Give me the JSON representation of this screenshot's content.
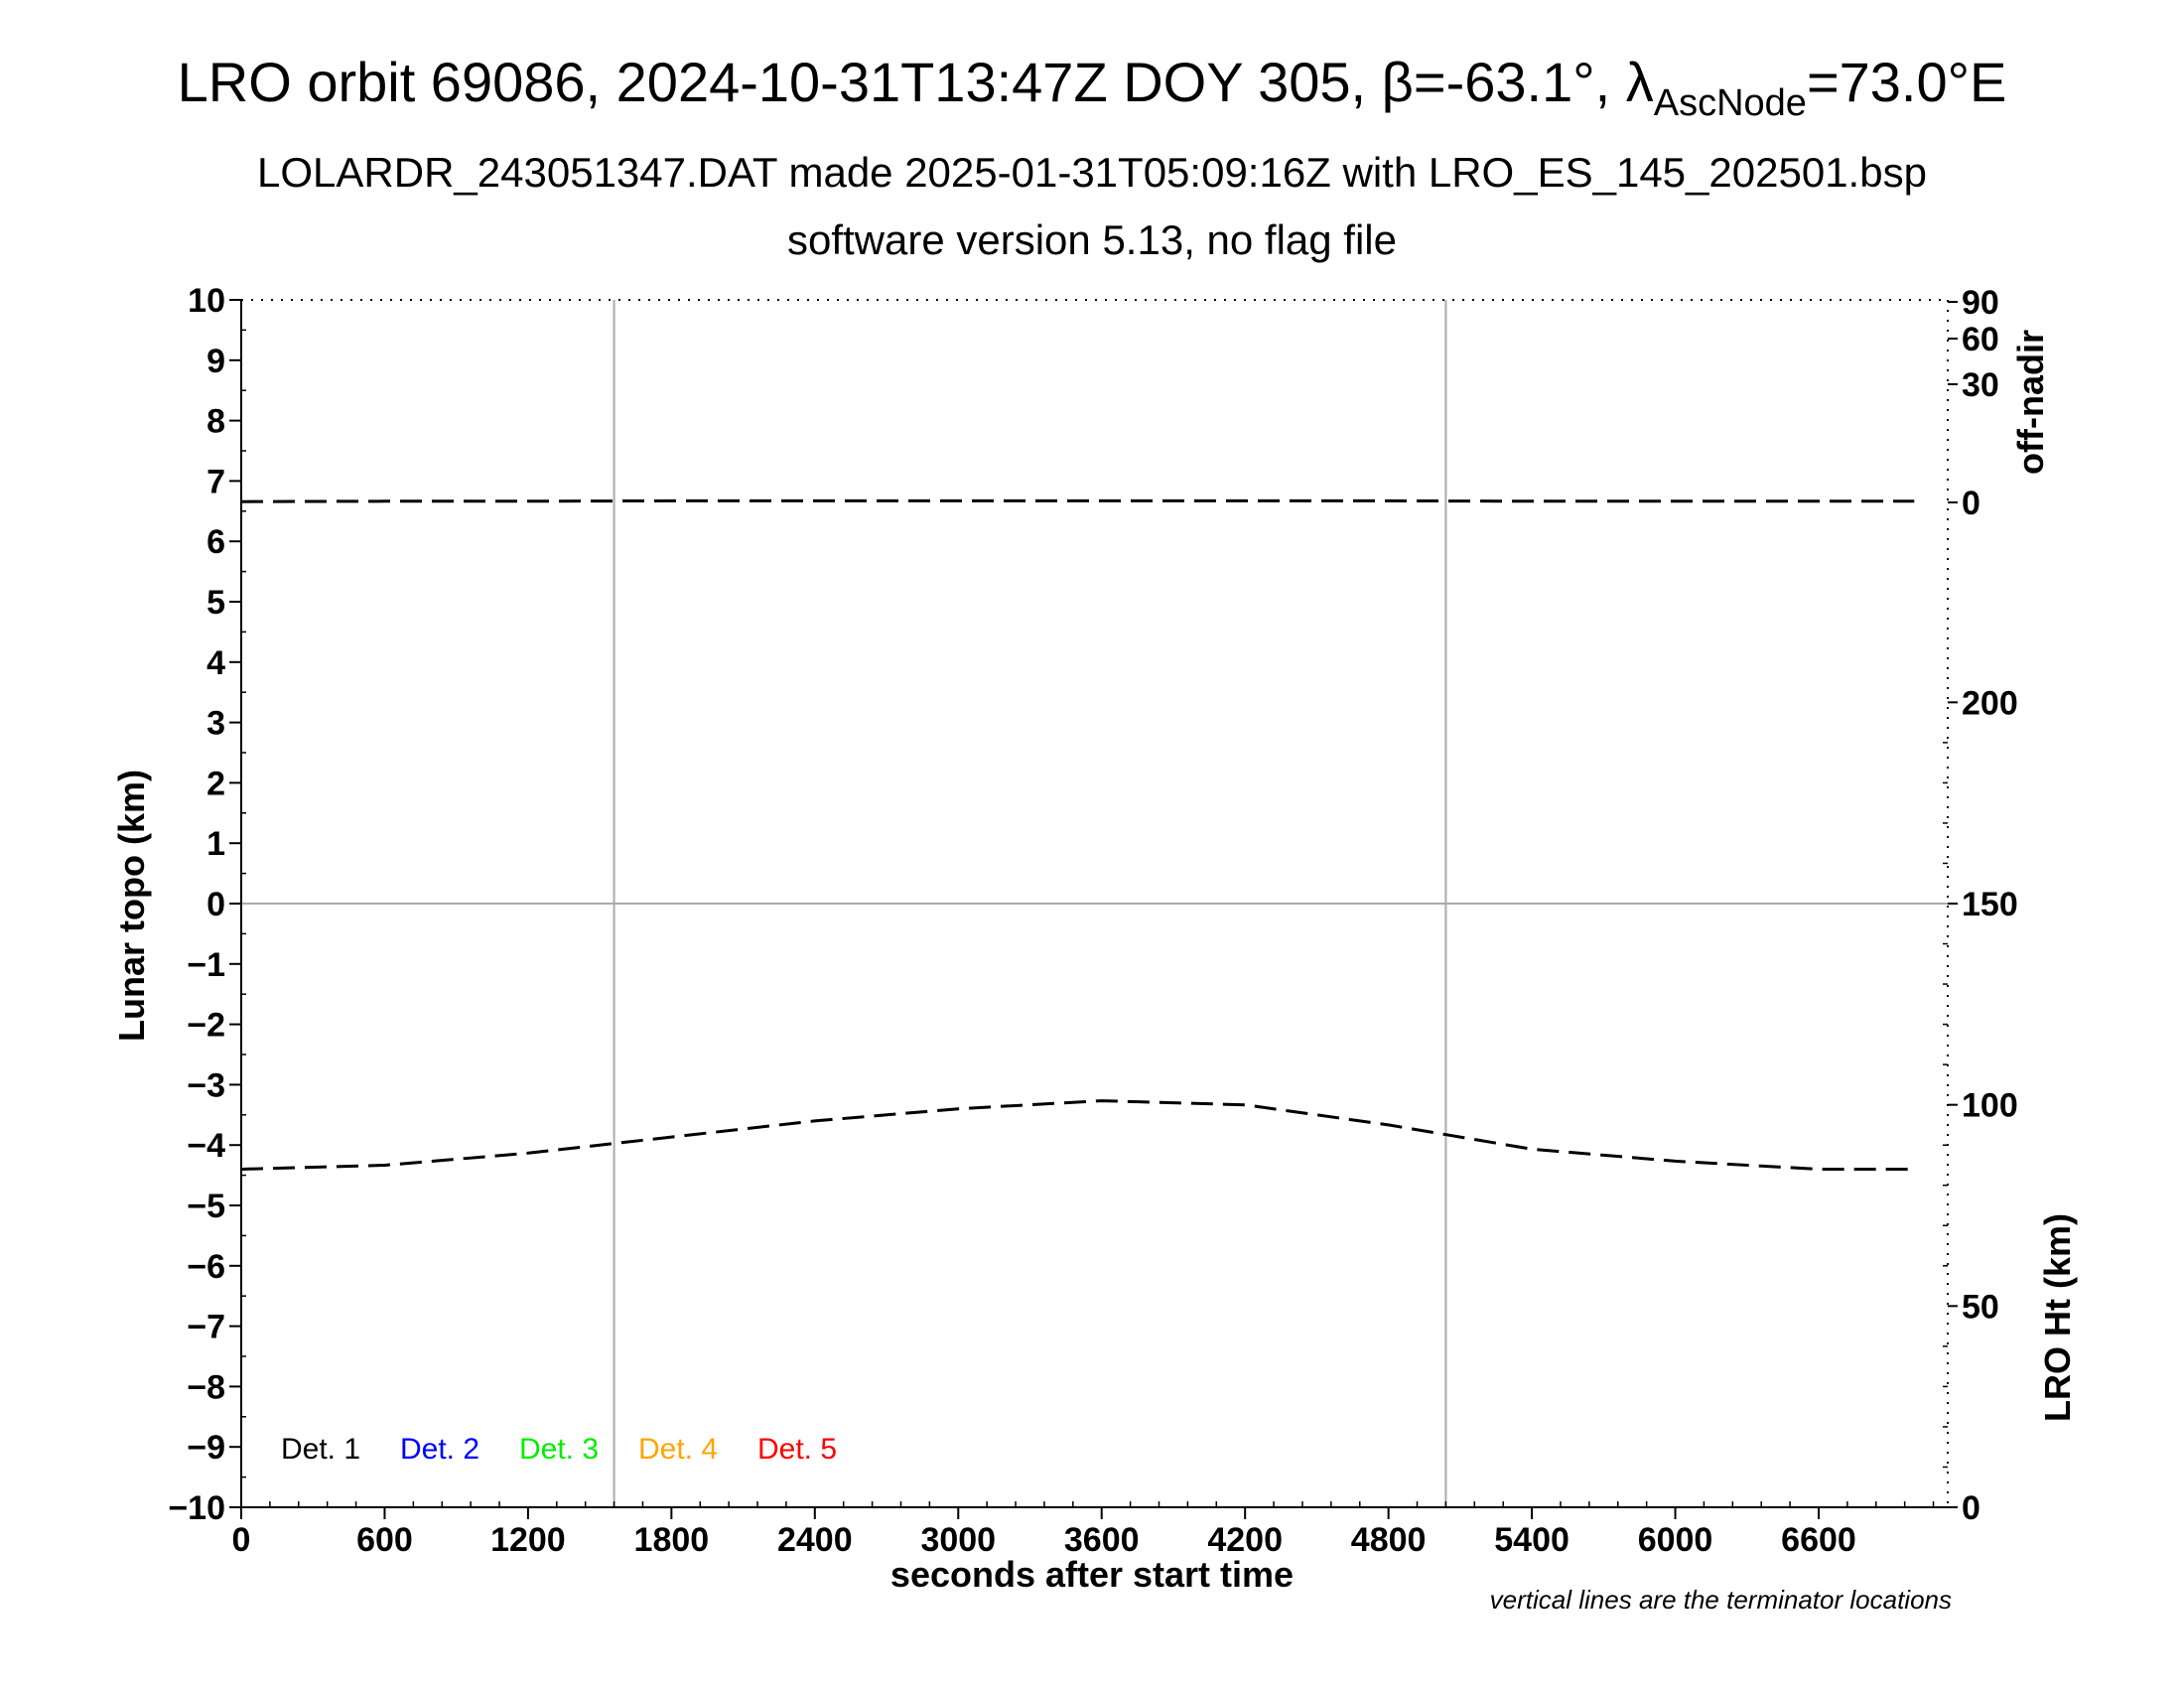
{
  "chart_data": {
    "type": "line",
    "title": "LRO orbit 69086, 2024-10-31T13:47Z DOY 305, β=-63.1°, λ",
    "title_subscript": "AscNode",
    "title_suffix": "=73.0°E",
    "subtitle": "LOLARDR_243051347.DAT made 2025-01-31T05:09:16Z with LRO_ES_145_202501.bsp",
    "subtitle2": "software version 5.13, no flag file",
    "xlabel": "seconds after start time",
    "ylabel": "Lunar topo (km)",
    "y2label_top": "off-nadir",
    "y2label_bottom": "LRO Ht (km)",
    "note": "vertical lines are the terminator locations",
    "xlim": [
      0,
      7140
    ],
    "ylim": [
      -10,
      10
    ],
    "x_ticks": [
      "0",
      "600",
      "1200",
      "1800",
      "2400",
      "3000",
      "3600",
      "4200",
      "4800",
      "5400",
      "6000",
      "6600"
    ],
    "y_ticks": [
      "10",
      "9",
      "8",
      "7",
      "6",
      "5",
      "4",
      "3",
      "2",
      "1",
      "0",
      "−1",
      "−2",
      "−3",
      "−4",
      "−5",
      "−6",
      "−7",
      "−8",
      "−9",
      "−10"
    ],
    "offnadir_ticks": [
      "90",
      "60",
      "30",
      "0"
    ],
    "height_ticks": [
      "200",
      "150",
      "100",
      "50",
      "0"
    ],
    "height_range": [
      0,
      300
    ],
    "terminators": [
      1560,
      5040
    ],
    "legend": [
      {
        "label": "Det. 1",
        "color": "#000000"
      },
      {
        "label": "Det. 2",
        "color": "#0000ff"
      },
      {
        "label": "Det. 3",
        "color": "#00ee00"
      },
      {
        "label": "Det. 4",
        "color": "#ffa500"
      },
      {
        "label": "Det. 5",
        "color": "#ff0000"
      }
    ],
    "series": [
      {
        "role": "off-nadir",
        "style": "dashed",
        "color": "#000000",
        "x": [
          0,
          600,
          1200,
          1800,
          2400,
          3000,
          3600,
          4200,
          4800,
          5400,
          6000,
          6600,
          7000
        ],
        "y": [
          0.2,
          0.3,
          0.3,
          0.4,
          0.4,
          0.4,
          0.4,
          0.4,
          0.4,
          0.3,
          0.3,
          0.3,
          0.3
        ]
      },
      {
        "role": "LRO Ht",
        "style": "dashed",
        "color": "#000000",
        "x": [
          0,
          600,
          1200,
          1800,
          2400,
          3000,
          3600,
          4200,
          4800,
          5400,
          6000,
          6600,
          7000
        ],
        "y": [
          84,
          85,
          88,
          92,
          96,
          99,
          101,
          100,
          95,
          89,
          86,
          84,
          84
        ]
      }
    ],
    "grid": false
  }
}
